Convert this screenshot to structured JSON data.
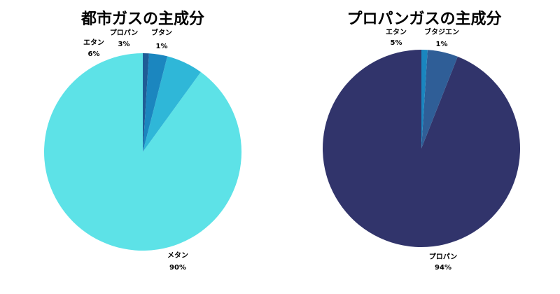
{
  "chart_data": [
    {
      "type": "pie",
      "title": "都市ガスの主成分",
      "slices": [
        {
          "label": "メタン",
          "value": 90,
          "value_text": "90%",
          "color": "#5de2e7"
        },
        {
          "label": "エタン",
          "value": 6,
          "value_text": "6%",
          "color": "#2fb7d8"
        },
        {
          "label": "プロパン",
          "value": 3,
          "value_text": "3%",
          "color": "#1b86bf"
        },
        {
          "label": "ブタン",
          "value": 1,
          "value_text": "1%",
          "color": "#1f5c96"
        }
      ],
      "legend": "none"
    },
    {
      "type": "pie",
      "title": "プロパンガスの主成分",
      "slices": [
        {
          "label": "プロパン",
          "value": 94,
          "value_text": "94%",
          "color": "#31346b"
        },
        {
          "label": "エタン",
          "value": 5,
          "value_text": "5%",
          "color": "#2f5e97"
        },
        {
          "label": "ブタジエン",
          "value": 1,
          "value_text": "1%",
          "color": "#1a86bf"
        }
      ],
      "legend": "none"
    }
  ]
}
